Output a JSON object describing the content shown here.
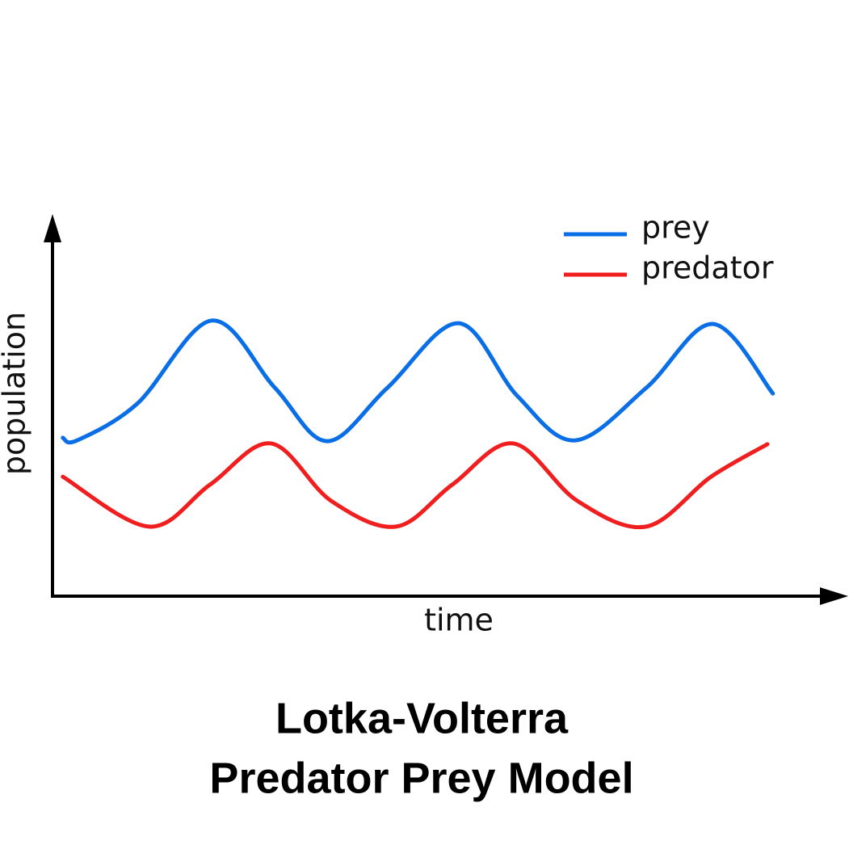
{
  "chart_data": {
    "type": "line",
    "title": [
      "Lotka-Volterra",
      "Predator Prey Model"
    ],
    "x_label": "time",
    "y_label": "population",
    "xlim": [
      0,
      100
    ],
    "ylim": [
      0,
      100
    ],
    "legend": "top-right",
    "series": [
      {
        "name": "prey",
        "color": "#0a6ee6",
        "x": [
          1.3,
          3.1,
          10.7,
          20.1,
          28.1,
          34.7,
          42.3,
          51.3,
          58.7,
          66.0,
          75.0,
          83.4,
          91.0
        ],
        "values": [
          41.9,
          41.2,
          50.9,
          72.9,
          55.1,
          41.0,
          55.1,
          72.2,
          53.0,
          41.2,
          55.1,
          72.0,
          53.6
        ]
      },
      {
        "name": "predator",
        "color": "#f01e1e",
        "x": [
          1.3,
          12.2,
          19.9,
          27.6,
          35.2,
          43.4,
          50.5,
          58.2,
          66.3,
          75.0,
          83.2,
          90.3
        ],
        "values": [
          31.6,
          18.4,
          29.5,
          40.4,
          25.2,
          18.4,
          29.5,
          40.4,
          25.2,
          18.4,
          31.6,
          40.2
        ]
      }
    ]
  }
}
